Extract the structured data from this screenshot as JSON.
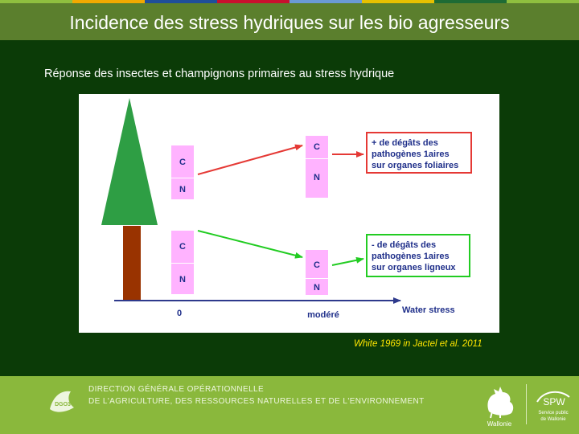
{
  "header": {
    "title": "Incidence des stress hydriques sur les bio agresseurs",
    "strip_colors": [
      "#8fbf3f",
      "#f2a900",
      "#1f4f9a",
      "#c8102e",
      "#6a9ad4",
      "#e7c000",
      "#1e6b35",
      "#8fbf3f"
    ]
  },
  "content": {
    "subtitle": "Réponse des insectes et champignons primaires au stress hydrique",
    "citation": "White 1969 in Jactel et al. 2011"
  },
  "figure": {
    "bar_labels": {
      "c": "C",
      "n": "N"
    },
    "box_top": [
      "+ de dégâts des",
      "pathogènes 1aires",
      "sur organes foliaires"
    ],
    "box_bottom": [
      "- de dégâts des",
      "pathogènes 1aires",
      "sur organes ligneux"
    ],
    "axis": {
      "zero": "0",
      "moderate": "modéré",
      "label": "Water stress"
    },
    "colors": {
      "tree_crown": "#2e9e44",
      "trunk": "#993300",
      "bar_fill": "#ffb3ff",
      "axis": "#2e3a8c",
      "increase": "#e53935",
      "decrease": "#22cc22",
      "text_blue": "#1f2f8a"
    }
  },
  "footer": {
    "line1": "DIRECTION GÉNÉRALE OPÉRATIONNELLE",
    "line2": "DE L'AGRICULTURE, DES RESSOURCES NATURELLES ET DE L'ENVIRONNEMENT",
    "dgo_logo_text": "DGO3",
    "wallonie": "Wallonie",
    "spw": "SPW",
    "spw_sub1": "Service public",
    "spw_sub2": "de Wallonie"
  }
}
